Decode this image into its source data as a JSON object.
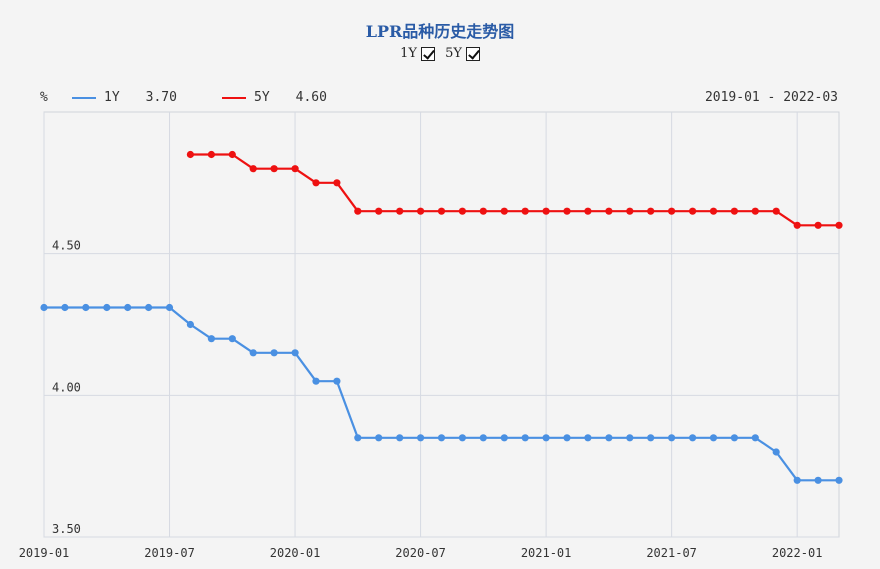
{
  "title": "LPR品种历史走势图",
  "toggles": [
    {
      "label": "1Y",
      "checked": true
    },
    {
      "label": "5Y",
      "checked": true
    }
  ],
  "legend": {
    "unit": "%",
    "items": [
      {
        "name": "1Y",
        "value": "3.70",
        "color": "#4a90e2"
      },
      {
        "name": "5Y",
        "value": "4.60",
        "color": "#ee1111"
      }
    ],
    "range": "2019-01 - 2022-03"
  },
  "chart_data": {
    "type": "line",
    "x_start": "2019-01",
    "x_end": "2022-03",
    "x_ticks": [
      "2019-01",
      "2019-07",
      "2020-01",
      "2020-07",
      "2021-01",
      "2021-07",
      "2022-01"
    ],
    "y_ticks": [
      "3.50",
      "4.00",
      "4.50"
    ],
    "ylim": [
      3.5,
      5.0
    ],
    "grid": true,
    "series": [
      {
        "name": "1Y",
        "color": "#4a90e2",
        "points": [
          [
            "2019-01",
            4.31
          ],
          [
            "2019-02",
            4.31
          ],
          [
            "2019-03",
            4.31
          ],
          [
            "2019-04",
            4.31
          ],
          [
            "2019-05",
            4.31
          ],
          [
            "2019-06",
            4.31
          ],
          [
            "2019-07",
            4.31
          ],
          [
            "2019-08",
            4.25
          ],
          [
            "2019-09",
            4.2
          ],
          [
            "2019-10",
            4.2
          ],
          [
            "2019-11",
            4.15
          ],
          [
            "2019-12",
            4.15
          ],
          [
            "2020-01",
            4.15
          ],
          [
            "2020-02",
            4.05
          ],
          [
            "2020-03",
            4.05
          ],
          [
            "2020-04",
            3.85
          ],
          [
            "2020-05",
            3.85
          ],
          [
            "2020-06",
            3.85
          ],
          [
            "2020-07",
            3.85
          ],
          [
            "2020-08",
            3.85
          ],
          [
            "2020-09",
            3.85
          ],
          [
            "2020-10",
            3.85
          ],
          [
            "2020-11",
            3.85
          ],
          [
            "2020-12",
            3.85
          ],
          [
            "2021-01",
            3.85
          ],
          [
            "2021-02",
            3.85
          ],
          [
            "2021-03",
            3.85
          ],
          [
            "2021-04",
            3.85
          ],
          [
            "2021-05",
            3.85
          ],
          [
            "2021-06",
            3.85
          ],
          [
            "2021-07",
            3.85
          ],
          [
            "2021-08",
            3.85
          ],
          [
            "2021-09",
            3.85
          ],
          [
            "2021-10",
            3.85
          ],
          [
            "2021-11",
            3.85
          ],
          [
            "2021-12",
            3.8
          ],
          [
            "2022-01",
            3.7
          ],
          [
            "2022-02",
            3.7
          ],
          [
            "2022-03",
            3.7
          ]
        ]
      },
      {
        "name": "5Y",
        "color": "#ee1111",
        "points": [
          [
            "2019-08",
            4.85
          ],
          [
            "2019-09",
            4.85
          ],
          [
            "2019-10",
            4.85
          ],
          [
            "2019-11",
            4.8
          ],
          [
            "2019-12",
            4.8
          ],
          [
            "2020-01",
            4.8
          ],
          [
            "2020-02",
            4.75
          ],
          [
            "2020-03",
            4.75
          ],
          [
            "2020-04",
            4.65
          ],
          [
            "2020-05",
            4.65
          ],
          [
            "2020-06",
            4.65
          ],
          [
            "2020-07",
            4.65
          ],
          [
            "2020-08",
            4.65
          ],
          [
            "2020-09",
            4.65
          ],
          [
            "2020-10",
            4.65
          ],
          [
            "2020-11",
            4.65
          ],
          [
            "2020-12",
            4.65
          ],
          [
            "2021-01",
            4.65
          ],
          [
            "2021-02",
            4.65
          ],
          [
            "2021-03",
            4.65
          ],
          [
            "2021-04",
            4.65
          ],
          [
            "2021-05",
            4.65
          ],
          [
            "2021-06",
            4.65
          ],
          [
            "2021-07",
            4.65
          ],
          [
            "2021-08",
            4.65
          ],
          [
            "2021-09",
            4.65
          ],
          [
            "2021-10",
            4.65
          ],
          [
            "2021-11",
            4.65
          ],
          [
            "2021-12",
            4.65
          ],
          [
            "2022-01",
            4.6
          ],
          [
            "2022-02",
            4.6
          ],
          [
            "2022-03",
            4.6
          ]
        ]
      }
    ]
  }
}
